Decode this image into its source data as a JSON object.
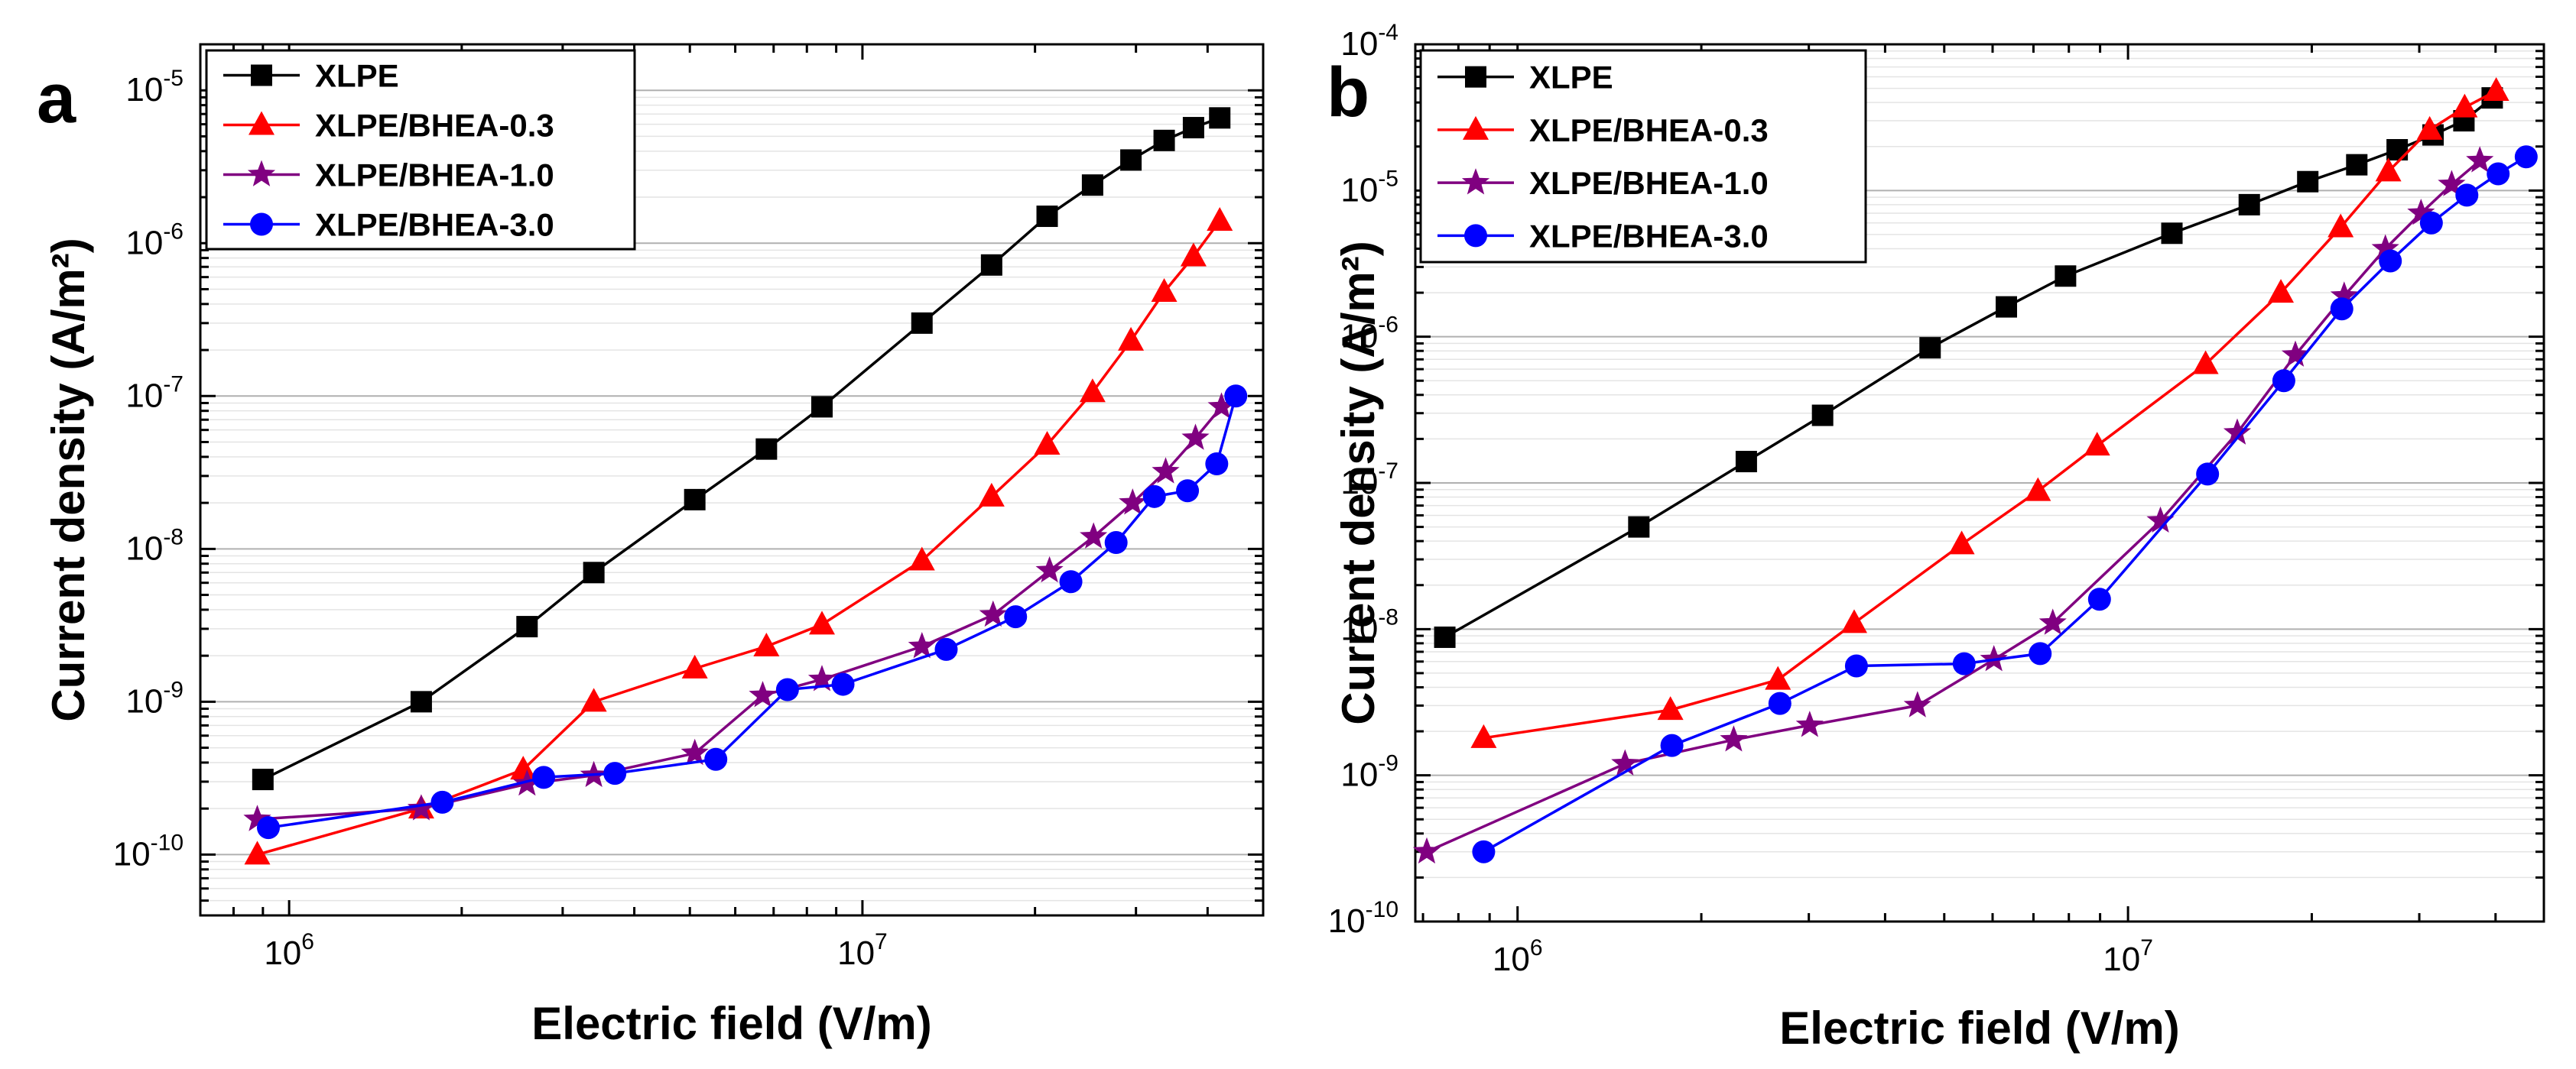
{
  "chart_data": [
    {
      "panel": "a",
      "type": "line",
      "xscale": "log",
      "yscale": "log",
      "xlabel": "Electric field (V/m)",
      "ylabel": "Current density (A/m²)",
      "xlim": [
        700000,
        50000000
      ],
      "ylim": [
        4e-11,
        2e-05
      ],
      "xticks": [
        {
          "value": 1000000,
          "base": "10",
          "exp": "6"
        },
        {
          "value": 10000000,
          "base": "10",
          "exp": "7"
        }
      ],
      "yticks": [
        {
          "value": 1e-10,
          "base": "10",
          "exp": "-10"
        },
        {
          "value": 1e-09,
          "base": "10",
          "exp": "-9"
        },
        {
          "value": 1e-08,
          "base": "10",
          "exp": "-8"
        },
        {
          "value": 1e-07,
          "base": "10",
          "exp": "-7"
        },
        {
          "value": 1e-06,
          "base": "10",
          "exp": "-6"
        },
        {
          "value": 1e-05,
          "base": "10",
          "exp": "-5"
        }
      ],
      "grid": "horizontal",
      "legend_position": "top-left",
      "series": [
        {
          "name": "XLPE",
          "marker": "square",
          "color": "#000000",
          "x": [
            900000,
            1700000,
            2600000,
            3400000,
            5100000,
            6800000,
            8500000,
            12700000,
            16800000,
            21000000,
            25200000,
            29400000,
            33600000,
            37800000,
            42000000
          ],
          "y": [
            3.1e-10,
            1e-09,
            3.1e-09,
            7e-09,
            2.1e-08,
            4.5e-08,
            8.5e-08,
            3e-07,
            7.2e-07,
            1.5e-06,
            2.4e-06,
            3.5e-06,
            4.7e-06,
            5.7e-06,
            6.6e-06
          ]
        },
        {
          "name": "XLPE/BHEA-0.3",
          "marker": "triangle",
          "color": "#ff0000",
          "x": [
            880000,
            1700000,
            2560000,
            3400000,
            5100000,
            6800000,
            8500000,
            12700000,
            16800000,
            21000000,
            25200000,
            29400000,
            33600000,
            37800000,
            42000000
          ],
          "y": [
            1e-10,
            2e-10,
            3.6e-10,
            1e-09,
            1.65e-09,
            2.3e-09,
            3.2e-09,
            8.4e-09,
            2.2e-08,
            4.8e-08,
            1.06e-07,
            2.3e-07,
            4.8e-07,
            8.2e-07,
            1.4e-06
          ]
        },
        {
          "name": "XLPE/BHEA-1.0",
          "marker": "star",
          "color": "#800080",
          "x": [
            880000,
            1700000,
            2600000,
            3400000,
            5100000,
            6700000,
            8500000,
            12700000,
            16900000,
            21200000,
            25300000,
            29600000,
            33800000,
            38100000,
            42300000
          ],
          "y": [
            1.7e-10,
            2e-10,
            2.9e-10,
            3.3e-10,
            4.6e-10,
            1.1e-09,
            1.4e-09,
            2.3e-09,
            3.7e-09,
            7.2e-09,
            1.2e-08,
            2e-08,
            3.2e-08,
            5.3e-08,
            8.5e-08
          ]
        },
        {
          "name": "XLPE/BHEA-3.0",
          "marker": "circle",
          "color": "#0000ff",
          "x": [
            920000,
            1850000,
            2780000,
            3700000,
            5550000,
            7400000,
            9250000,
            14000000,
            18500000,
            23100000,
            27700000,
            32300000,
            36900000,
            41500000,
            44800000
          ],
          "y": [
            1.5e-10,
            2.2e-10,
            3.2e-10,
            3.4e-10,
            4.2e-10,
            1.2e-09,
            1.3e-09,
            2.2e-09,
            3.6e-09,
            6.1e-09,
            1.1e-08,
            2.2e-08,
            2.4e-08,
            3.6e-08,
            1e-07
          ]
        }
      ]
    },
    {
      "panel": "b",
      "type": "line",
      "xscale": "log",
      "yscale": "log",
      "xlabel": "Electric field (V/m)",
      "ylabel": "Current density (A/m²)",
      "xlim": [
        680000,
        48000000
      ],
      "ylim": [
        1e-10,
        0.0001
      ],
      "xticks": [
        {
          "value": 1000000,
          "base": "10",
          "exp": "6"
        },
        {
          "value": 10000000,
          "base": "10",
          "exp": "7"
        }
      ],
      "yticks": [
        {
          "value": 1e-10,
          "base": "10",
          "exp": "-10"
        },
        {
          "value": 1e-09,
          "base": "10",
          "exp": "-9"
        },
        {
          "value": 1e-08,
          "base": "10",
          "exp": "-8"
        },
        {
          "value": 1e-07,
          "base": "10",
          "exp": "-7"
        },
        {
          "value": 1e-06,
          "base": "10",
          "exp": "-6"
        },
        {
          "value": 1e-05,
          "base": "10",
          "exp": "-5"
        },
        {
          "value": 0.0001,
          "base": "10",
          "exp": "-4"
        }
      ],
      "grid": "horizontal",
      "legend_position": "top-left",
      "series": [
        {
          "name": "XLPE",
          "marker": "square",
          "color": "#000000",
          "x": [
            760000,
            1580000,
            2370000,
            3160000,
            4740000,
            6320000,
            7900000,
            11800000,
            15800000,
            19700000,
            23700000,
            27600000,
            31600000,
            35500000,
            39500000
          ],
          "y": [
            8.8e-09,
            5e-08,
            1.4e-07,
            2.9e-07,
            8.4e-07,
            1.6e-06,
            2.6e-06,
            5.1e-06,
            8e-06,
            1.15e-05,
            1.5e-05,
            1.9e-05,
            2.4e-05,
            3e-05,
            4.3e-05
          ]
        },
        {
          "name": "XLPE/BHEA-0.3",
          "marker": "triangle",
          "color": "#ff0000",
          "x": [
            880000,
            1780000,
            2670000,
            3560000,
            5340000,
            7120000,
            8900000,
            13400000,
            17800000,
            22300000,
            26700000,
            31200000,
            35600000,
            40100000
          ],
          "y": [
            1.8e-09,
            2.8e-09,
            4.5e-09,
            1.1e-08,
            3.8e-08,
            8.8e-08,
            1.8e-07,
            6.5e-07,
            2e-06,
            5.6e-06,
            1.35e-05,
            2.6e-05,
            3.7e-05,
            4.8e-05
          ]
        },
        {
          "name": "XLPE/BHEA-1.0",
          "marker": "star",
          "color": "#800080",
          "x": [
            710000,
            1500000,
            2260000,
            3010000,
            4520000,
            6030000,
            7530000,
            11300000,
            15100000,
            18800000,
            22600000,
            26400000,
            30200000,
            33900000,
            37700000
          ],
          "y": [
            3e-10,
            1.2e-09,
            1.75e-09,
            2.2e-09,
            3e-09,
            6.2e-09,
            1.1e-08,
            5.5e-08,
            2.2e-07,
            7.5e-07,
            1.9e-06,
            4e-06,
            7e-06,
            1.1e-05,
            1.6e-05
          ]
        },
        {
          "name": "XLPE/BHEA-3.0",
          "marker": "circle",
          "color": "#0000ff",
          "x": [
            880000,
            1790000,
            2690000,
            3590000,
            5390000,
            7180000,
            8980000,
            13500000,
            18000000,
            22400000,
            26900000,
            31400000,
            35900000,
            40400000,
            44900000
          ],
          "y": [
            3e-10,
            1.6e-09,
            3.1e-09,
            5.6e-09,
            5.8e-09,
            6.8e-09,
            1.6e-08,
            1.15e-07,
            5e-07,
            1.55e-06,
            3.3e-06,
            6e-06,
            9.3e-06,
            1.3e-05,
            1.7e-05
          ]
        }
      ]
    }
  ]
}
